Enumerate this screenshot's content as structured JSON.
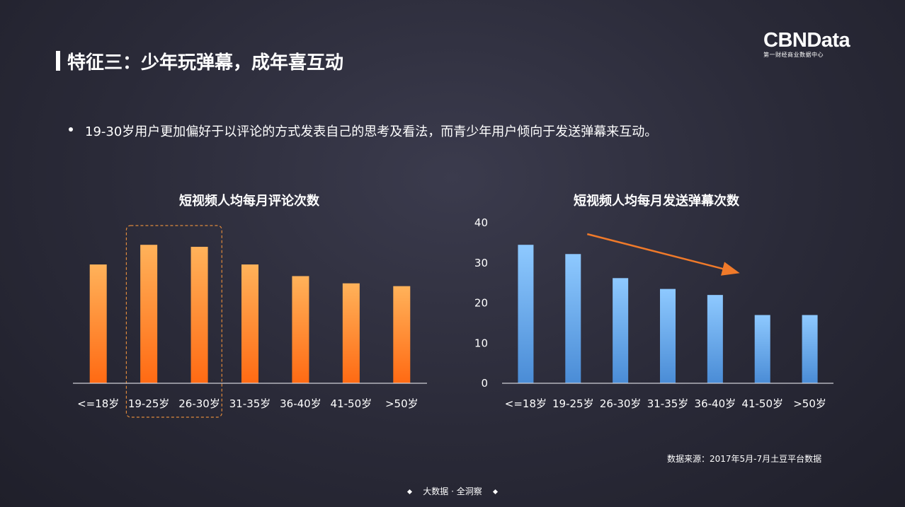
{
  "header": {
    "title": "特征三：少年玩弹幕，成年喜互动",
    "logo_main": "CBNData",
    "logo_sub": "第一财经商业数据中心"
  },
  "bullet": "19-30岁用户更加偏好于以评论的方式发表自己的思考及看法，而青少年用户倾向于发送弹幕来互动。",
  "source": "数据来源：2017年5月-7月土豆平台数据",
  "footer": "大数据 · 全洞察",
  "colors": {
    "orange_top": "#ffb25a",
    "orange_bottom": "#ff6a13",
    "blue_top": "#8ec9ff",
    "blue_bottom": "#4a8cd6",
    "arrow": "#f07a2a",
    "highlight_box": "#e08a3c"
  },
  "chart_data": [
    {
      "type": "bar",
      "title": "短视频人均每月评论次数",
      "categories": [
        "<=18岁",
        "19-25岁",
        "26-30岁",
        "31-35岁",
        "36-40岁",
        "41-50岁",
        ">50岁"
      ],
      "values": [
        29.6,
        34.5,
        34.0,
        29.6,
        26.7,
        24.9,
        24.2
      ],
      "ylim": [
        0,
        40
      ],
      "y_axis_shown": false,
      "highlight": [
        "19-25岁",
        "26-30岁"
      ],
      "grid": false
    },
    {
      "type": "bar",
      "title": "短视频人均每月发送弹幕次数",
      "categories": [
        "<=18岁",
        "19-25岁",
        "26-30岁",
        "31-35岁",
        "36-40岁",
        "41-50岁",
        ">50岁"
      ],
      "values": [
        34.5,
        32.2,
        26.2,
        23.5,
        22.0,
        17.0,
        17.0
      ],
      "ylim": [
        0,
        40
      ],
      "yticks": [
        "0",
        "10",
        "20",
        "30",
        "40"
      ],
      "trend_arrow": "decreasing",
      "grid": false
    }
  ]
}
